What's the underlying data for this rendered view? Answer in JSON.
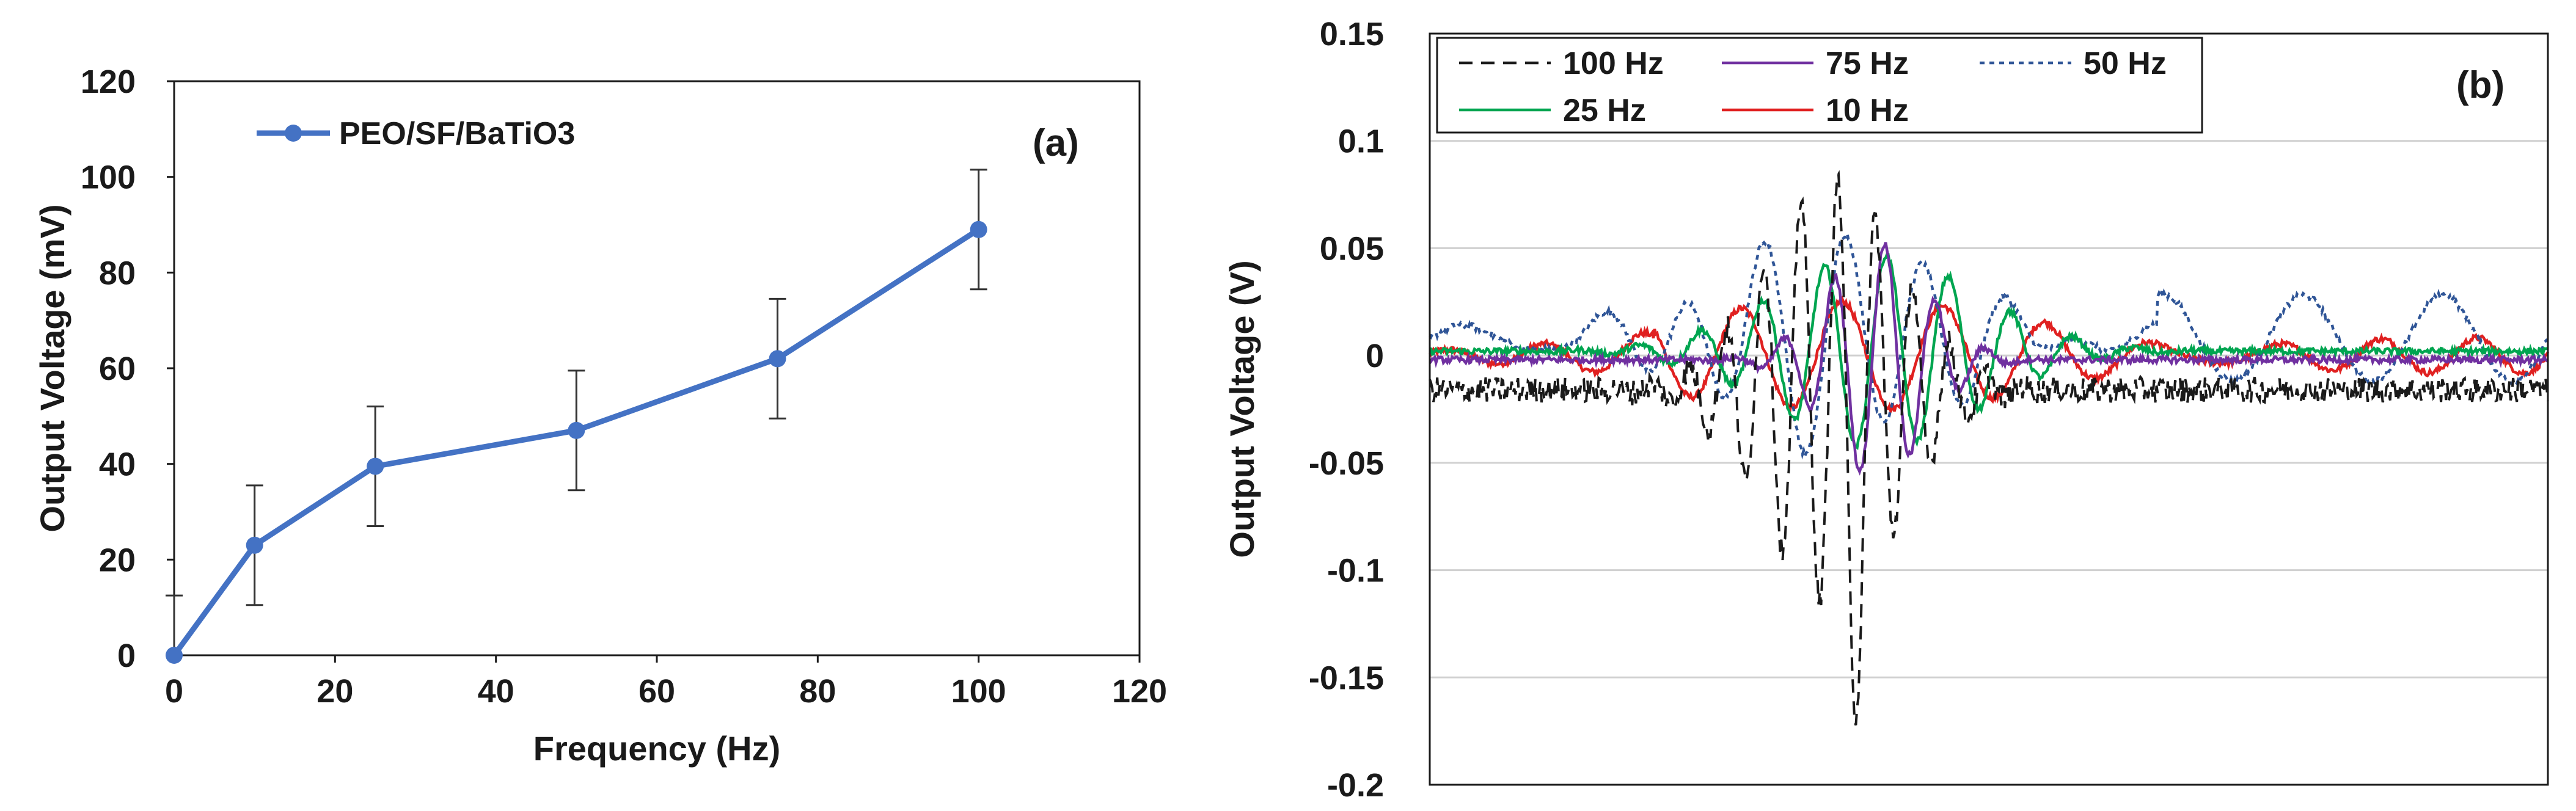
{
  "chart_data": [
    {
      "type": "line",
      "panel_label": "(a)",
      "title": "",
      "xlabel": "Frequency (Hz)",
      "ylabel": "Output Voltage (mV)",
      "xlim": [
        0,
        120
      ],
      "ylim": [
        0,
        120
      ],
      "xticks": [
        "0",
        "20",
        "40",
        "60",
        "80",
        "100",
        "120"
      ],
      "yticks": [
        "0",
        "20",
        "40",
        "60",
        "80",
        "100",
        "120"
      ],
      "grid": false,
      "legend_position": "top-left",
      "series": [
        {
          "name": "PEO/SF/BaTiO3",
          "color": "#4472C4",
          "x": [
            0,
            10,
            25,
            50,
            75,
            100
          ],
          "y": [
            0,
            23,
            39.5,
            47,
            62,
            89
          ],
          "error": [
            12.5,
            12.5,
            12.5,
            12.5,
            12.5,
            12.5
          ]
        }
      ]
    },
    {
      "type": "line",
      "panel_label": "(b)",
      "title": "",
      "xlabel": "",
      "ylabel": "Output Voltage (V)",
      "xlim": [
        0,
        1
      ],
      "ylim": [
        -0.2,
        0.15
      ],
      "yticks": [
        "0.15",
        "0.1",
        "0.05",
        "0",
        "-0.05",
        "-0.1",
        "-0.15",
        "-0.2"
      ],
      "grid": true,
      "legend_position": "top",
      "series": [
        {
          "name": "100 Hz",
          "color": "#1a1a1a",
          "style": "dashed",
          "amplitude": 0.1,
          "baseline": -0.016,
          "center": 0.36,
          "frequency": 30,
          "width": 0.06
        },
        {
          "name": "75 Hz",
          "color": "#7030A0",
          "style": "solid",
          "amplitude": 0.055,
          "baseline": -0.002,
          "center": 0.4,
          "frequency": 22,
          "width": 0.045
        },
        {
          "name": "50 Hz",
          "color": "#2F5597",
          "style": "dotted",
          "amplitude": 0.05,
          "baseline": 0.008,
          "center": 0.36,
          "frequency": 14,
          "width": 0.1
        },
        {
          "name": "25 Hz",
          "color": "#00A550",
          "style": "solid",
          "amplitude": 0.045,
          "baseline": 0.002,
          "center": 0.4,
          "frequency": 18,
          "width": 0.09
        },
        {
          "name": "10 Hz",
          "color": "#E02020",
          "style": "solid",
          "amplitude": 0.025,
          "baseline": 0.0,
          "center": 0.45,
          "frequency": 11,
          "width": 0.18
        }
      ]
    }
  ]
}
